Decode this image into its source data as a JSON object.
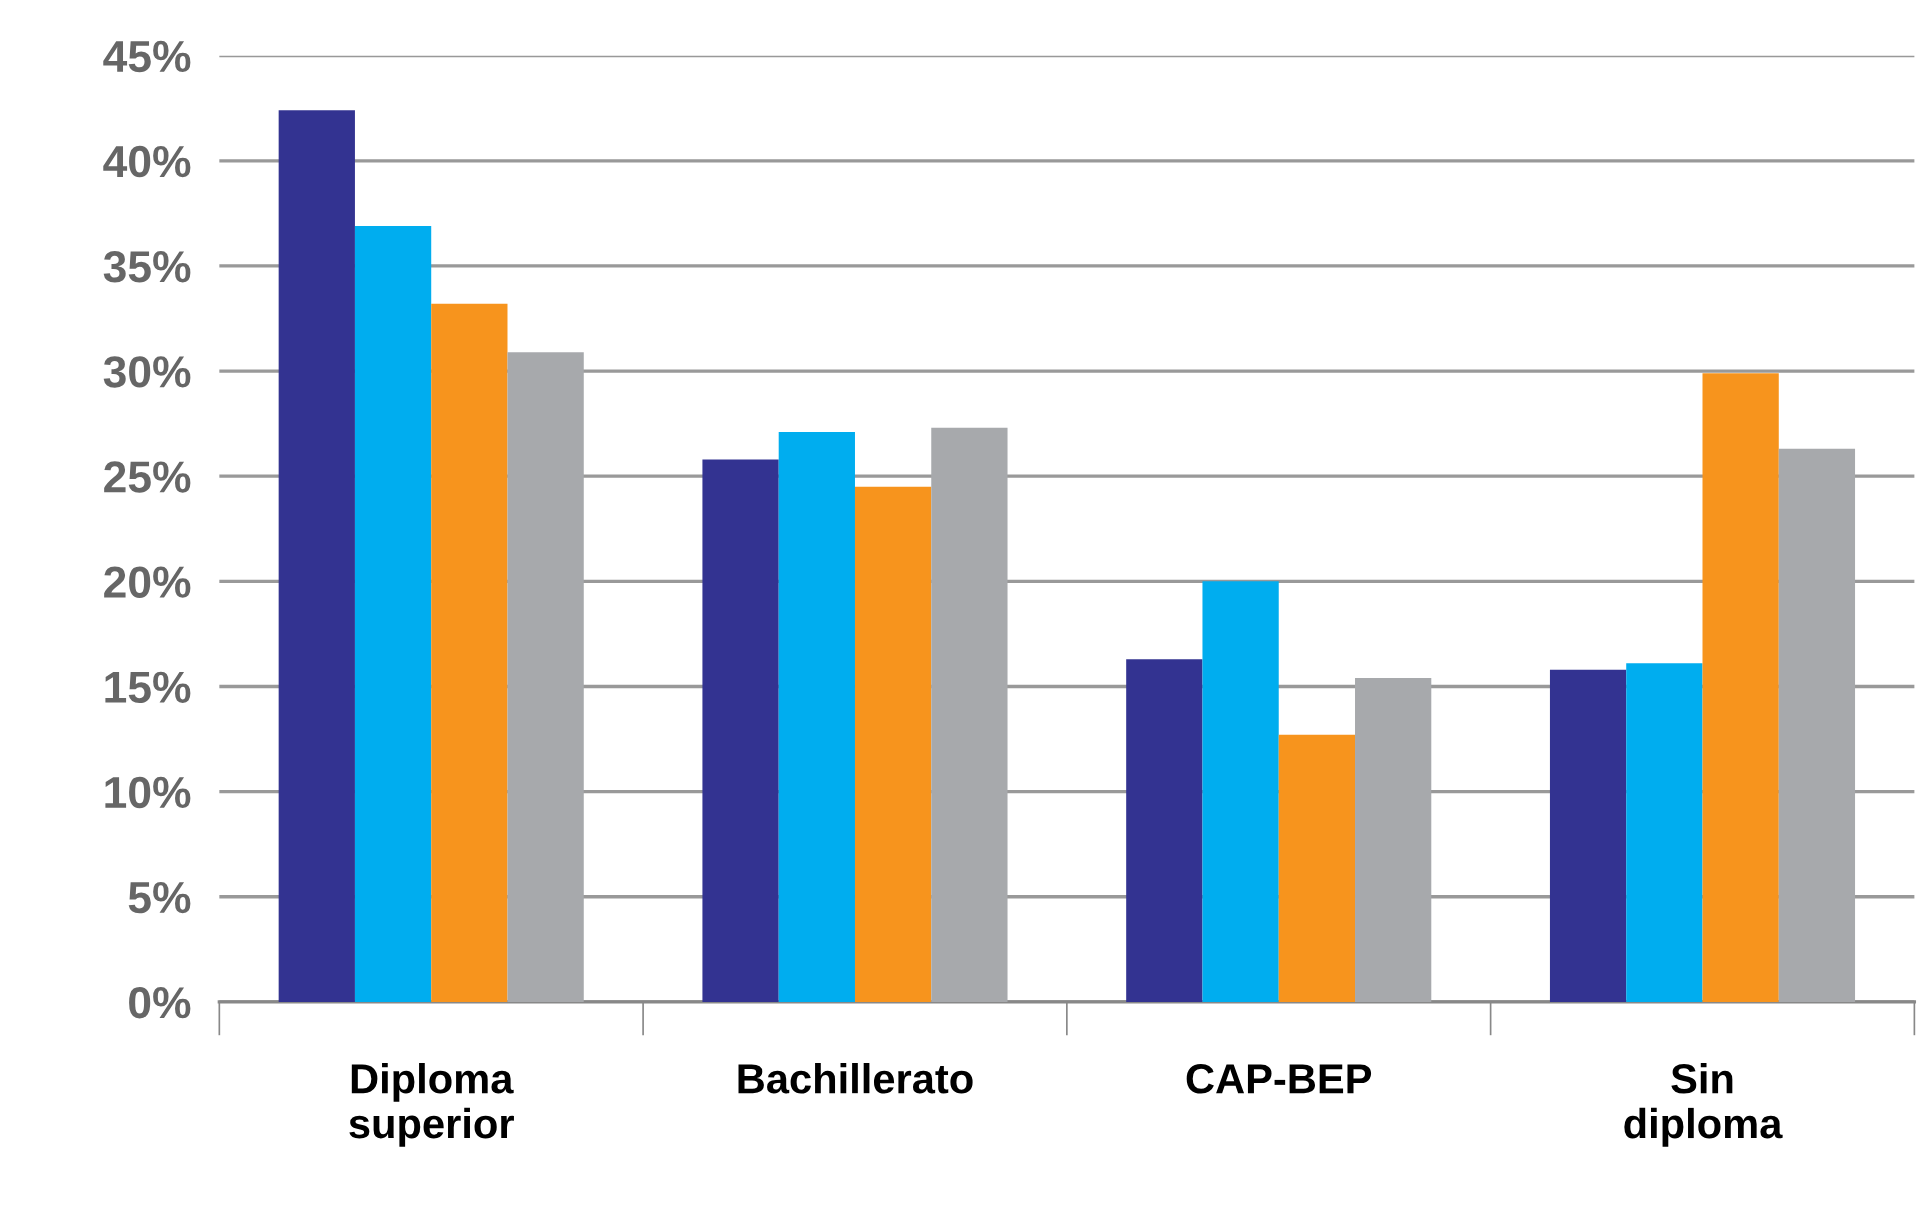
{
  "chart_data": {
    "type": "bar",
    "categories": [
      "Diploma\nsuperior",
      "Bachillerato",
      "CAP-BEP",
      "Sin\ndiploma"
    ],
    "series": [
      {
        "color": "#333391",
        "values": [
          42.4,
          25.8,
          16.3,
          15.8
        ]
      },
      {
        "color": "#00adef",
        "values": [
          36.9,
          27.1,
          20.0,
          16.1
        ]
      },
      {
        "color": "#f7941d",
        "values": [
          33.2,
          24.5,
          12.7,
          29.9
        ]
      },
      {
        "color": "#a7a9ac",
        "values": [
          30.9,
          27.3,
          15.4,
          26.3
        ]
      }
    ],
    "ylim": [
      0,
      45
    ],
    "yticks": [
      {
        "value": 0,
        "label": "0%"
      },
      {
        "value": 5,
        "label": "5%"
      },
      {
        "value": 10,
        "label": "10%"
      },
      {
        "value": 15,
        "label": "15%"
      },
      {
        "value": 20,
        "label": "20%"
      },
      {
        "value": 25,
        "label": "25%"
      },
      {
        "value": 30,
        "label": "30%"
      },
      {
        "value": 35,
        "label": "35%"
      },
      {
        "value": 40,
        "label": "40%"
      },
      {
        "value": 45,
        "label": "45%"
      }
    ],
    "grid": "y"
  }
}
